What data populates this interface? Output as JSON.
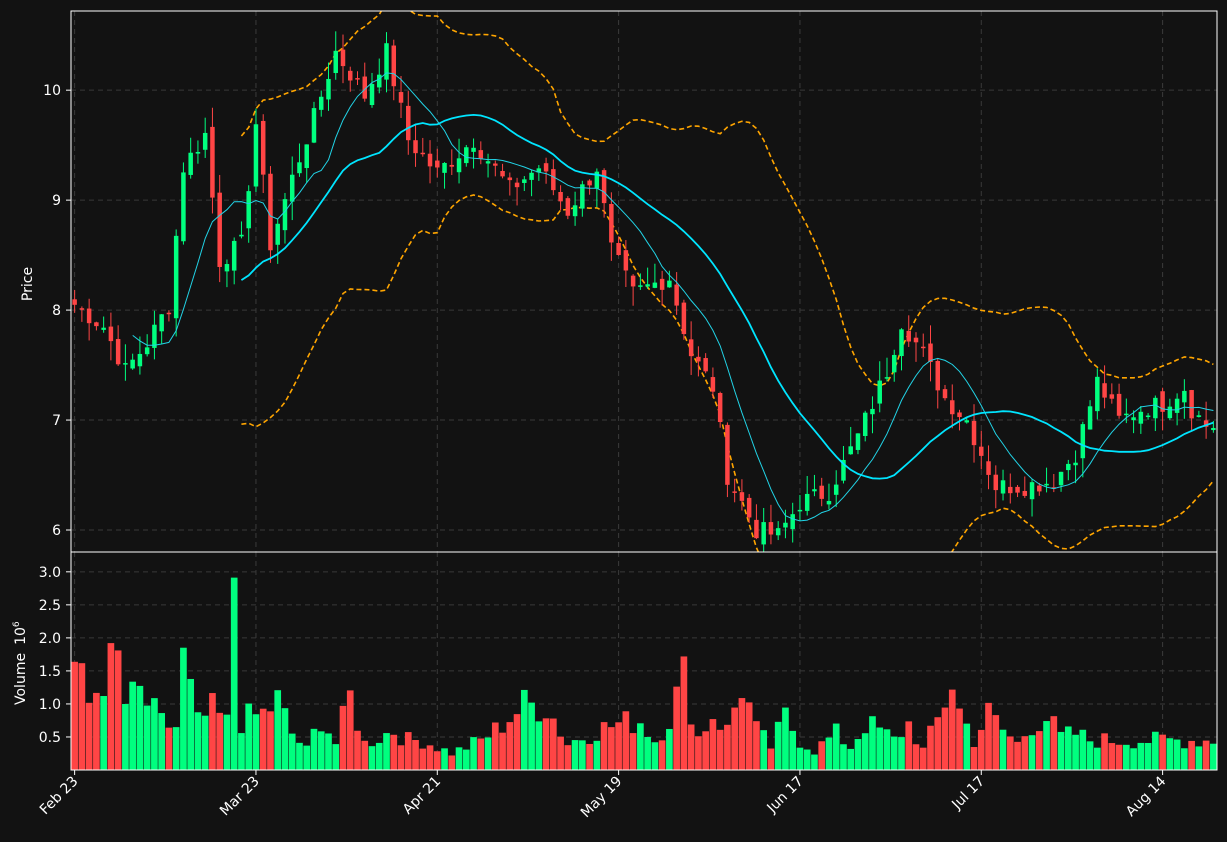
{
  "colors": {
    "background": "#121212",
    "panel": "#121212",
    "grid": "#3a3a3a",
    "up": "#00ff7f",
    "down": "#ff4545",
    "ma_fast": "#22d3e6",
    "ma_slow": "#00e5ff",
    "bands": "#ffa500",
    "frame": "#ffffff"
  },
  "chart_data": [
    {
      "type": "candlestick",
      "ylabel": "Price",
      "ylim": [
        5.8,
        10.72
      ],
      "yticks": [
        6,
        7,
        8,
        9,
        10
      ],
      "grid": true,
      "days": 158,
      "x_tick_labels": [
        {
          "label": "Feb 23",
          "day": 0
        },
        {
          "label": "Mar 23",
          "day": 25
        },
        {
          "label": "Apr 21",
          "day": 50
        },
        {
          "label": "May 19",
          "day": 75
        },
        {
          "label": "Jun 17",
          "day": 100
        },
        {
          "label": "Jul 17",
          "day": 125
        },
        {
          "label": "Aug 14",
          "day": 150
        }
      ],
      "close_anchors": [
        [
          0,
          8.05
        ],
        [
          4,
          7.85
        ],
        [
          7,
          7.45
        ],
        [
          10,
          7.7
        ],
        [
          13,
          8.05
        ],
        [
          15,
          9.3
        ],
        [
          18,
          9.6
        ],
        [
          20,
          8.45
        ],
        [
          23,
          8.6
        ],
        [
          25,
          9.7
        ],
        [
          27,
          8.6
        ],
        [
          30,
          9.2
        ],
        [
          33,
          9.75
        ],
        [
          36,
          10.35
        ],
        [
          40,
          9.95
        ],
        [
          43,
          10.35
        ],
        [
          46,
          9.55
        ],
        [
          50,
          9.25
        ],
        [
          55,
          9.55
        ],
        [
          60,
          9.1
        ],
        [
          64,
          9.3
        ],
        [
          68,
          8.9
        ],
        [
          72,
          9.3
        ],
        [
          74,
          8.55
        ],
        [
          77,
          8.15
        ],
        [
          82,
          8.3
        ],
        [
          85,
          7.6
        ],
        [
          88,
          7.3
        ],
        [
          90,
          6.5
        ],
        [
          94,
          6.0
        ],
        [
          97,
          5.95
        ],
        [
          100,
          6.25
        ],
        [
          104,
          6.35
        ],
        [
          108,
          6.85
        ],
        [
          112,
          7.45
        ],
        [
          114,
          7.9
        ],
        [
          117,
          7.6
        ],
        [
          120,
          7.2
        ],
        [
          123,
          7.0
        ],
        [
          127,
          6.4
        ],
        [
          131,
          6.4
        ],
        [
          135,
          6.45
        ],
        [
          138,
          6.7
        ],
        [
          141,
          7.35
        ],
        [
          144,
          7.0
        ],
        [
          147,
          7.1
        ],
        [
          150,
          7.15
        ],
        [
          153,
          7.3
        ],
        [
          154,
          7.1
        ],
        [
          156,
          6.95
        ],
        [
          157,
          6.95
        ]
      ],
      "ma_fast_window": 9,
      "ma_slow_window": 24,
      "band_window": 24,
      "band_multiplier": 2,
      "series": [
        {
          "name": "MA 9",
          "color": "#22d3e6"
        },
        {
          "name": "MA 24",
          "color": "#00e5ff"
        },
        {
          "name": "Bollinger upper",
          "color": "#ffa500"
        },
        {
          "name": "Bollinger lower",
          "color": "#ffa500"
        }
      ]
    },
    {
      "type": "bar",
      "ylabel": "Volume",
      "ylabel_multiplier": "10",
      "ylabel_exponent": "6",
      "ylim": [
        0.0,
        3.3
      ],
      "yticks": [
        0.5,
        1.0,
        1.5,
        2.0,
        2.5,
        3.0
      ],
      "ytick_labels": [
        "0.5",
        "1.0",
        "1.5",
        "2.0",
        "2.5",
        "3.0"
      ],
      "grid": true,
      "volume_anchors": [
        [
          0,
          1.6
        ],
        [
          2,
          1.0
        ],
        [
          4,
          1.45
        ],
        [
          6,
          1.65
        ],
        [
          7,
          1.0
        ],
        [
          9,
          1.15
        ],
        [
          12,
          0.7
        ],
        [
          14,
          0.65
        ],
        [
          15,
          1.65
        ],
        [
          17,
          0.7
        ],
        [
          19,
          0.9
        ],
        [
          21,
          0.7
        ],
        [
          22,
          3.02
        ],
        [
          23,
          0.75
        ],
        [
          26,
          0.85
        ],
        [
          28,
          1.05
        ],
        [
          30,
          0.55
        ],
        [
          32,
          0.3
        ],
        [
          34,
          0.8
        ],
        [
          36,
          0.4
        ],
        [
          38,
          1.1
        ],
        [
          40,
          0.4
        ],
        [
          44,
          0.6
        ],
        [
          46,
          0.45
        ],
        [
          48,
          0.45
        ],
        [
          52,
          0.25
        ],
        [
          56,
          0.45
        ],
        [
          58,
          0.6
        ],
        [
          60,
          0.8
        ],
        [
          62,
          0.98
        ],
        [
          65,
          0.98
        ],
        [
          68,
          0.4
        ],
        [
          72,
          0.6
        ],
        [
          75,
          0.7
        ],
        [
          78,
          0.75
        ],
        [
          80,
          0.45
        ],
        [
          82,
          0.8
        ],
        [
          84,
          1.42
        ],
        [
          86,
          0.5
        ],
        [
          88,
          0.85
        ],
        [
          90,
          0.6
        ],
        [
          92,
          1.3
        ],
        [
          94,
          0.6
        ],
        [
          96,
          0.35
        ],
        [
          98,
          0.8
        ],
        [
          100,
          0.45
        ],
        [
          102,
          0.3
        ],
        [
          105,
          0.55
        ],
        [
          107,
          0.35
        ],
        [
          109,
          0.7
        ],
        [
          111,
          0.6
        ],
        [
          113,
          0.45
        ],
        [
          115,
          0.7
        ],
        [
          117,
          0.3
        ],
        [
          119,
          0.75
        ],
        [
          121,
          1.35
        ],
        [
          122,
          0.9
        ],
        [
          124,
          0.45
        ],
        [
          126,
          0.85
        ],
        [
          128,
          0.6
        ],
        [
          130,
          0.4
        ],
        [
          132,
          0.7
        ],
        [
          134,
          0.8
        ],
        [
          136,
          0.5
        ],
        [
          138,
          0.55
        ],
        [
          140,
          0.45
        ],
        [
          157,
          0.45
        ]
      ]
    }
  ]
}
